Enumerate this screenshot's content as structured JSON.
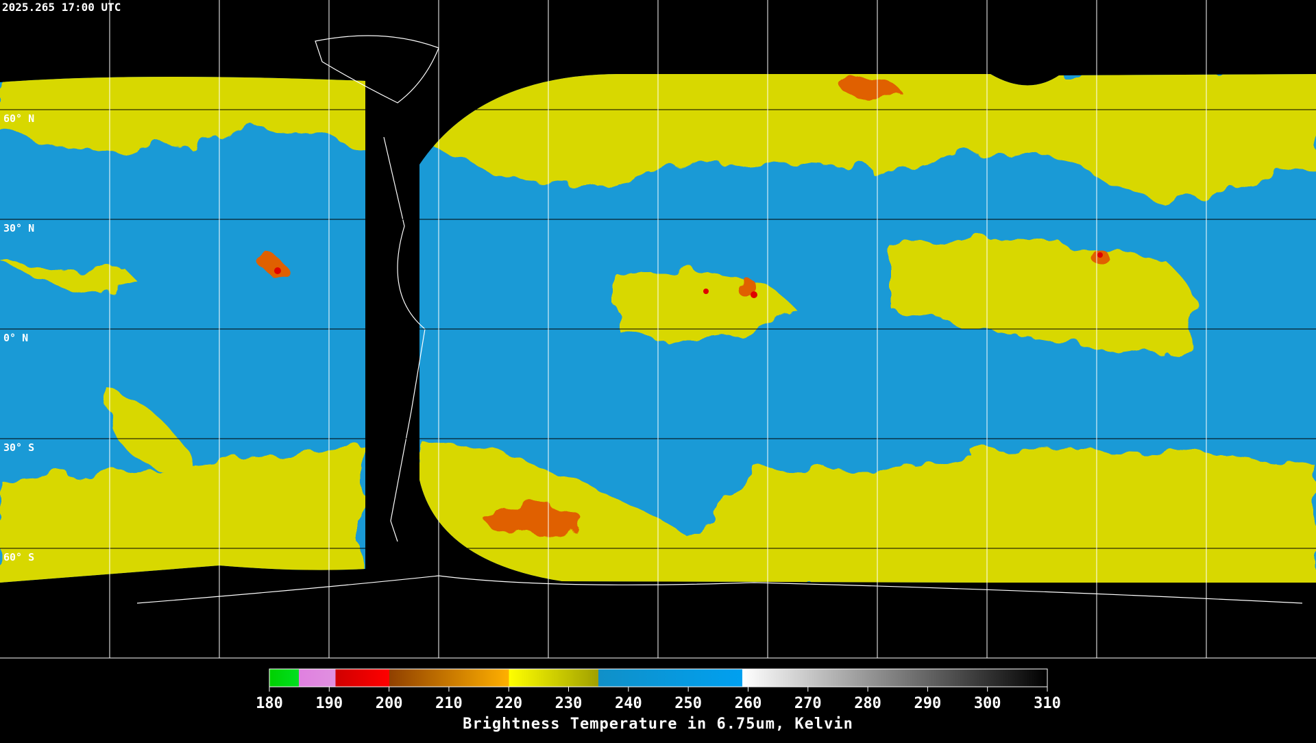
{
  "header": {
    "title": "2025.265 17:00 UTC"
  },
  "latitude_labels": [
    "60° N",
    "30° N",
    "0° N",
    "30° S",
    "60° S"
  ],
  "colorbar": {
    "range": [
      180,
      310
    ],
    "ticks": [
      180,
      190,
      200,
      210,
      220,
      230,
      240,
      250,
      260,
      270,
      280,
      290,
      300,
      310
    ],
    "label": "Brightness Temperature in 6.75um, Kelvin"
  }
}
